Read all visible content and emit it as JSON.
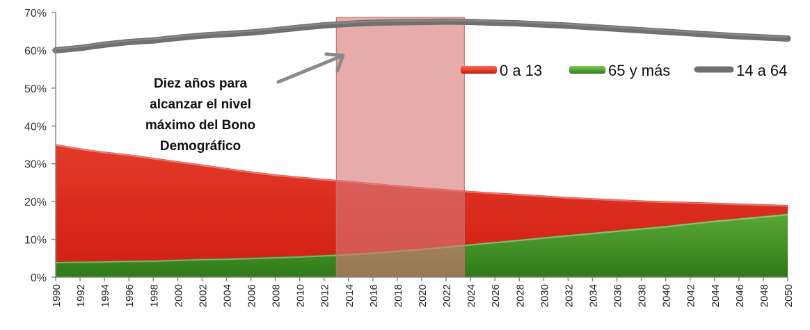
{
  "chart_data": {
    "type": "area",
    "x": [
      1990,
      1992,
      1994,
      1996,
      1998,
      2000,
      2002,
      2004,
      2006,
      2008,
      2010,
      2012,
      2014,
      2016,
      2018,
      2020,
      2022,
      2024,
      2026,
      2028,
      2030,
      2032,
      2034,
      2036,
      2038,
      2040,
      2042,
      2044,
      2046,
      2048,
      2050
    ],
    "x_tick_labels": [
      "1990",
      "1992",
      "1994",
      "1996",
      "1998",
      "2000",
      "2002",
      "2004",
      "2006",
      "2008",
      "2010",
      "2012",
      "2014",
      "2016",
      "2018",
      "2020",
      "2022",
      "2024",
      "2026",
      "2028",
      "2030",
      "2032",
      "2034",
      "2036",
      "2038",
      "2040",
      "2042",
      "2044",
      "2046",
      "2048",
      "2050"
    ],
    "ylim": [
      0,
      70
    ],
    "y_ticks": [
      0,
      10,
      20,
      30,
      40,
      50,
      60,
      70
    ],
    "y_tick_labels": [
      "0%",
      "10%",
      "20%",
      "30%",
      "40%",
      "50%",
      "60%",
      "70%"
    ],
    "grid": false,
    "legend_position": "right",
    "series": [
      {
        "name": "0 a 13",
        "kind": "area",
        "color": "#d92b1e",
        "values": [
          35.2,
          34.1,
          33.2,
          32.5,
          31.6,
          30.7,
          29.8,
          28.9,
          28.0,
          27.2,
          26.6,
          26.0,
          25.5,
          24.9,
          24.3,
          23.8,
          23.3,
          22.8,
          22.4,
          22.0,
          21.6,
          21.2,
          20.9,
          20.6,
          20.3,
          20.1,
          19.9,
          19.7,
          19.5,
          19.3,
          19.1
        ]
      },
      {
        "name": "65 y más",
        "kind": "area",
        "color": "#3e8f22",
        "values": [
          4.1,
          4.2,
          4.3,
          4.4,
          4.5,
          4.7,
          4.9,
          5.0,
          5.2,
          5.4,
          5.6,
          5.9,
          6.2,
          6.6,
          7.1,
          7.6,
          8.2,
          8.8,
          9.4,
          10.0,
          10.6,
          11.2,
          11.8,
          12.4,
          13.0,
          13.6,
          14.3,
          15.0,
          15.6,
          16.2,
          16.8
        ]
      },
      {
        "name": "14 a 64",
        "kind": "line",
        "color": "#707070",
        "values": [
          60.0,
          60.6,
          61.5,
          62.2,
          62.6,
          63.3,
          63.9,
          64.3,
          64.7,
          65.3,
          66.0,
          66.6,
          67.0,
          67.3,
          67.4,
          67.5,
          67.6,
          67.5,
          67.3,
          67.1,
          66.8,
          66.5,
          66.1,
          65.7,
          65.3,
          64.9,
          64.5,
          64.1,
          63.7,
          63.4,
          63.1
        ]
      }
    ],
    "highlight_band": {
      "x_start": 2013,
      "x_end": 2023.5,
      "color": "#d67876"
    },
    "annotation": {
      "lines": [
        "Diez años para",
        "alcanzar el nivel",
        "máximo del Bono",
        "Demográfico"
      ],
      "arrow_to_x": 2014,
      "arrow_to_y": 59
    }
  }
}
